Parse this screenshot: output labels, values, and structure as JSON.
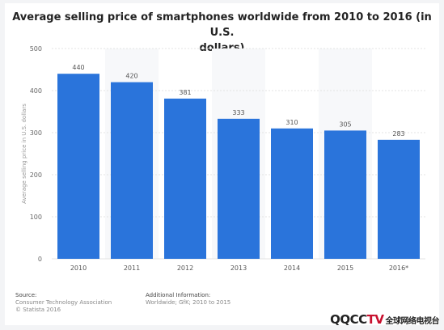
{
  "chart_data": {
    "type": "bar",
    "title": "Average selling price of smartphones worldwide from 2010 to 2016 (in U.S. dollars)",
    "title_lines": [
      "Average selling price of smartphones worldwide from 2010 to 2016 (in U.S.",
      "dollars)"
    ],
    "xlabel": "",
    "ylabel": "Average selling price in U.S. dollars",
    "ylim": [
      0,
      500
    ],
    "yticks": [
      0,
      100,
      200,
      300,
      400,
      500
    ],
    "categories": [
      "2010",
      "2011",
      "2012",
      "2013",
      "2014",
      "2015",
      "2016*"
    ],
    "values": [
      440,
      420,
      381,
      333,
      310,
      305,
      283
    ],
    "bar_color": "#2a74db",
    "grid": true
  },
  "footer": {
    "source_label": "Source:",
    "source_lines": [
      "Consumer Technology Association",
      "© Statista 2016"
    ],
    "additional_label": "Additional Information:",
    "additional_text": "Worldwide; GfK; 2010 to 2015"
  },
  "watermark": {
    "text_a": "QQCC",
    "text_b": "TV",
    "text_c": "全球网络电视台"
  }
}
